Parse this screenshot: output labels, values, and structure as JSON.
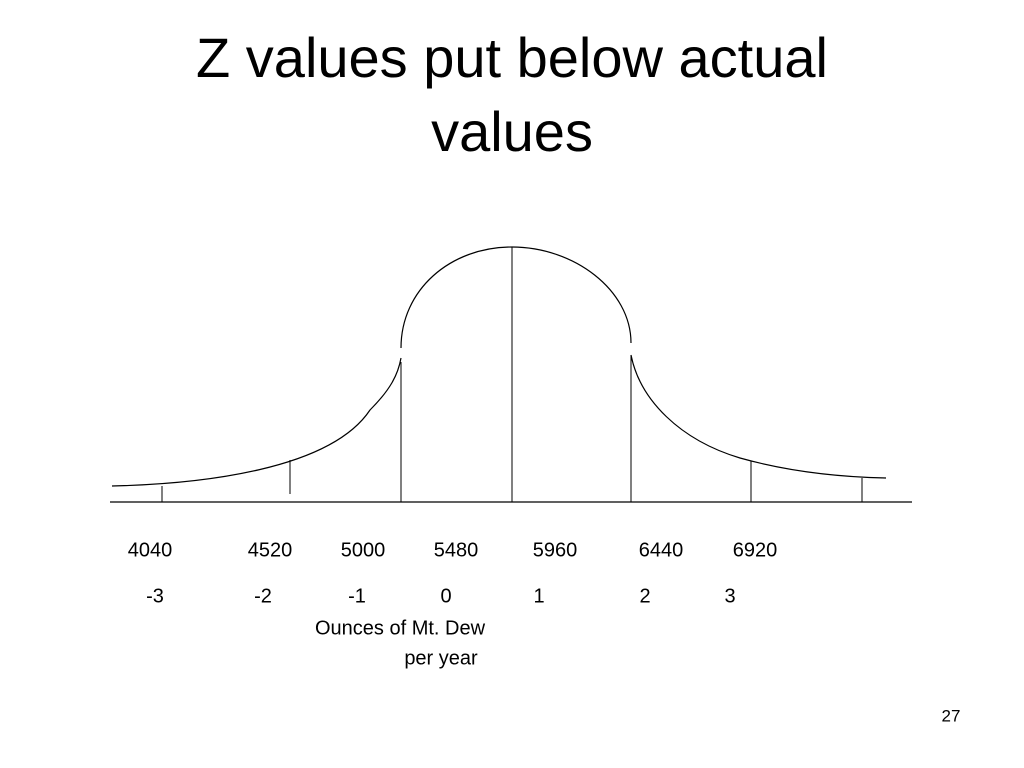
{
  "title": [
    "Z values put below actual",
    "values"
  ],
  "actual_values": [
    "4040",
    "4520",
    "5000",
    "5480",
    "5960",
    "6440",
    "6920"
  ],
  "z_values": [
    "-3",
    "-2",
    "-1",
    "0",
    "1",
    "2",
    "3"
  ],
  "axis_label": [
    "Ounces of Mt. Dew",
    "per year"
  ],
  "page_number": "27"
}
